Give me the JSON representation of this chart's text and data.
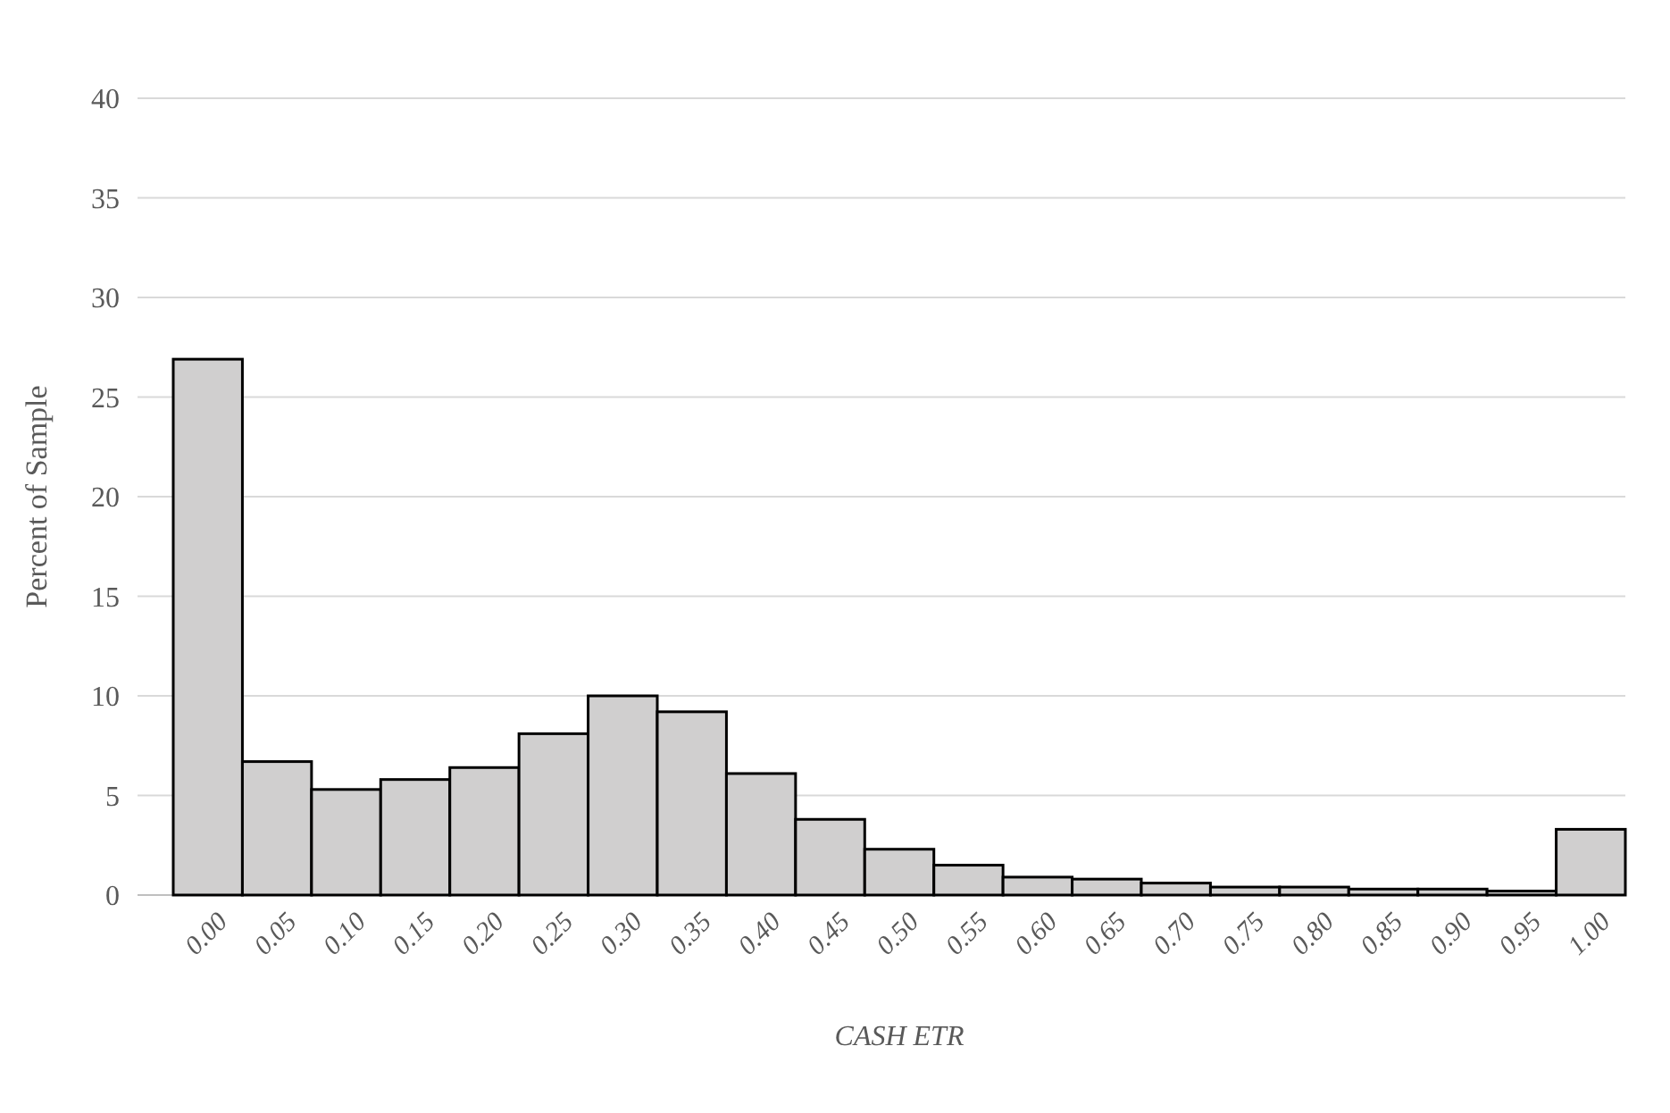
{
  "chart_data": {
    "type": "bar",
    "xlabel": "CASH ETR",
    "ylabel": "Percent of Sample",
    "categories": [
      "0.00",
      "0.05",
      "0.10",
      "0.15",
      "0.20",
      "0.25",
      "0.30",
      "0.35",
      "0.40",
      "0.45",
      "0.50",
      "0.55",
      "0.60",
      "0.65",
      "0.70",
      "0.75",
      "0.80",
      "0.85",
      "0.90",
      "0.95",
      "1.00"
    ],
    "values": [
      26.9,
      6.7,
      5.3,
      5.8,
      6.4,
      8.1,
      10.0,
      9.2,
      6.1,
      3.8,
      2.3,
      1.5,
      0.9,
      0.8,
      0.6,
      0.4,
      0.4,
      0.3,
      0.3,
      0.2,
      3.3
    ],
    "color": "#d0cfcf",
    "ylim": [
      0,
      40
    ],
    "yticks": [
      0,
      5,
      10,
      15,
      20,
      25,
      30,
      35,
      40
    ],
    "grid": "y"
  }
}
